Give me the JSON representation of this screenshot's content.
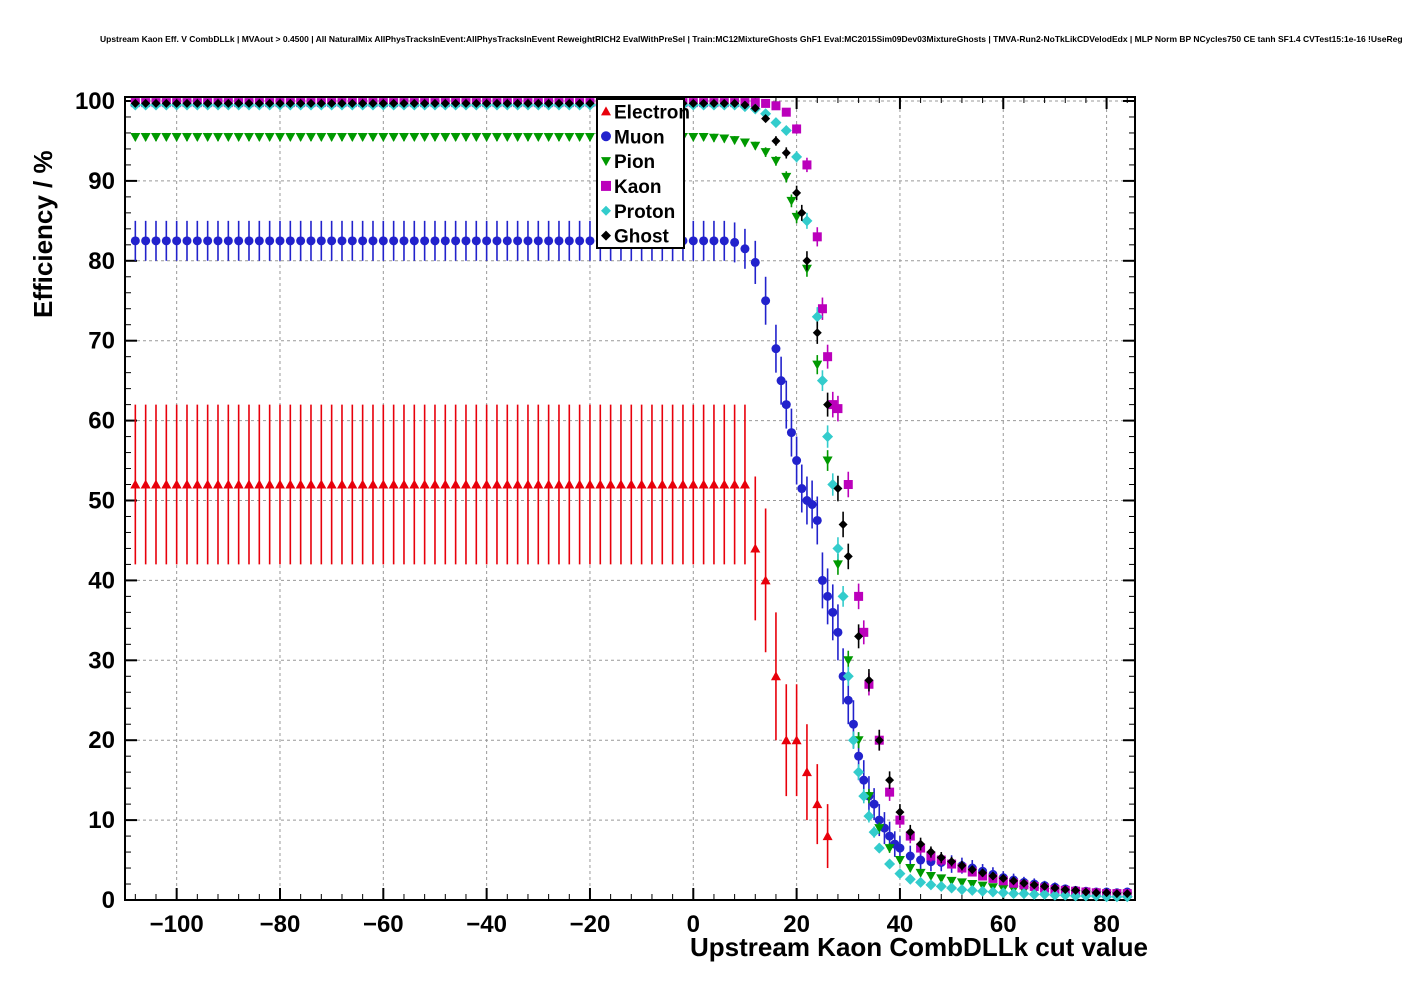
{
  "chart_data": {
    "type": "scatter",
    "title": "Upstream Kaon Eff. V CombDLLk | MVAout > 0.4500 | All NaturalMix AllPhysTracksInEvent:AllPhysTracksInEvent ReweightRICH2 EvalWithPreSel | Train:MC12MixtureGhosts GhF1 Eval:MC2015Sim09Dev03MixtureGhosts | TMVA-Run2-NoTkLikCDVelodEdx | MLP Norm BP NCycles750 CE tanh SF1.4 CVTest15:1e-16 !UseReg",
    "xlabel": "Upstream Kaon CombDLLk cut value",
    "ylabel": "Efficiency / %",
    "xlim": [
      -110,
      85.5
    ],
    "ylim": [
      0,
      100.5
    ],
    "x_ticks": [
      -100,
      -80,
      -60,
      -40,
      -20,
      0,
      20,
      40,
      60,
      80
    ],
    "y_ticks": [
      0,
      10,
      20,
      30,
      40,
      50,
      60,
      70,
      80,
      90,
      100
    ],
    "x_minor_step": 4,
    "y_minor_step": 2,
    "grid": true,
    "grid_color": "#999999",
    "frame_color": "#000000",
    "legend": {
      "background": "#ffffff",
      "border_color": "#000000"
    },
    "series": [
      {
        "name": "Electron",
        "color": "#e8000b",
        "marker": "triangle-up",
        "marker_size": 5,
        "plateau": {
          "x_start": -108,
          "x_end": 10,
          "step": 2,
          "y": 52,
          "yerr": 10
        },
        "drop": [
          [
            12,
            44,
            9
          ],
          [
            14,
            40,
            9
          ],
          [
            16,
            28,
            8
          ],
          [
            18,
            20,
            7
          ],
          [
            20,
            20,
            7
          ],
          [
            22,
            16,
            6
          ],
          [
            24,
            12,
            5
          ],
          [
            26,
            8,
            4
          ]
        ]
      },
      {
        "name": "Muon",
        "color": "#2222cc",
        "marker": "circle",
        "marker_size": 4.5,
        "plateau": {
          "x_start": -108,
          "x_end": 6,
          "step": 2,
          "y": 82.5,
          "yerr": 2.5
        },
        "drop": [
          [
            8,
            82.3,
            2.5
          ],
          [
            10,
            81.5,
            2.5
          ],
          [
            12,
            79.8,
            2.7
          ],
          [
            14,
            75,
            3
          ],
          [
            16,
            69,
            3
          ],
          [
            17,
            65,
            3
          ],
          [
            18,
            62,
            3
          ],
          [
            19,
            58.5,
            3
          ],
          [
            20,
            55,
            3
          ],
          [
            21,
            51.5,
            3
          ],
          [
            22,
            50,
            3
          ],
          [
            23,
            49.5,
            3
          ],
          [
            24,
            47.5,
            3
          ],
          [
            25,
            40,
            3.5
          ],
          [
            26,
            38,
            3.5
          ],
          [
            27,
            36,
            3.5
          ],
          [
            28,
            33.5,
            3.5
          ],
          [
            29,
            28,
            3.5
          ],
          [
            30,
            25,
            3
          ],
          [
            31,
            22,
            3
          ],
          [
            32,
            18,
            3
          ],
          [
            33,
            15,
            2.5
          ],
          [
            34,
            13,
            2.5
          ],
          [
            35,
            12,
            2
          ],
          [
            36,
            10,
            2
          ],
          [
            37,
            9,
            2
          ],
          [
            38,
            8,
            1.8
          ],
          [
            39,
            7,
            1.6
          ],
          [
            40,
            6.5,
            1.5
          ],
          [
            42,
            5.5,
            1.3
          ],
          [
            44,
            5,
            1.2
          ],
          [
            46,
            4.8,
            1.2
          ],
          [
            48,
            4.7,
            1.1
          ],
          [
            50,
            4.5,
            1.1
          ],
          [
            52,
            4.3,
            1
          ],
          [
            54,
            4,
            1
          ],
          [
            56,
            3.6,
            0.9
          ],
          [
            58,
            3.2,
            0.9
          ],
          [
            60,
            2.8,
            0.8
          ],
          [
            62,
            2.5,
            0.8
          ],
          [
            64,
            2.2,
            0.7
          ],
          [
            66,
            2,
            0.7
          ],
          [
            68,
            1.8,
            0.6
          ],
          [
            70,
            1.6,
            0.6
          ],
          [
            72,
            1.4,
            0.5
          ],
          [
            74,
            1.2,
            0.5
          ],
          [
            76,
            1.1,
            0.4
          ],
          [
            78,
            1,
            0.4
          ],
          [
            80,
            1,
            0.4
          ],
          [
            82,
            0.9,
            0.4
          ],
          [
            84,
            1,
            0.4
          ]
        ]
      },
      {
        "name": "Pion",
        "color": "#009900",
        "marker": "triangle-down",
        "marker_size": 5,
        "plateau": {
          "x_start": -108,
          "x_end": 2,
          "step": 2,
          "y": 95.5,
          "yerr": 0.5
        },
        "drop": [
          [
            4,
            95.4,
            0.5
          ],
          [
            6,
            95.3,
            0.5
          ],
          [
            8,
            95.1,
            0.5
          ],
          [
            10,
            94.8,
            0.5
          ],
          [
            12,
            94.4,
            0.5
          ],
          [
            14,
            93.6,
            0.6
          ],
          [
            16,
            92.5,
            0.6
          ],
          [
            18,
            90.5,
            0.7
          ],
          [
            19,
            87.5,
            0.8
          ],
          [
            20,
            85.5,
            0.8
          ],
          [
            22,
            79,
            1
          ],
          [
            24,
            67,
            1.2
          ],
          [
            26,
            55,
            1.3
          ],
          [
            28,
            42,
            1.3
          ],
          [
            30,
            30,
            1.2
          ],
          [
            32,
            20,
            1
          ],
          [
            34,
            13,
            0.9
          ],
          [
            36,
            9,
            0.7
          ],
          [
            38,
            6.5,
            0.6
          ],
          [
            40,
            5,
            0.5
          ],
          [
            42,
            4,
            0.5
          ],
          [
            44,
            3.4,
            0.4
          ],
          [
            46,
            3,
            0.4
          ],
          [
            48,
            2.7,
            0.4
          ],
          [
            50,
            2.4,
            0.3
          ],
          [
            52,
            2.2,
            0.3
          ],
          [
            54,
            2,
            0.3
          ],
          [
            56,
            1.8,
            0.3
          ],
          [
            58,
            1.6,
            0.3
          ],
          [
            60,
            1.4,
            0.2
          ],
          [
            62,
            1.3,
            0.2
          ],
          [
            64,
            1.2,
            0.2
          ],
          [
            66,
            1.1,
            0.2
          ],
          [
            68,
            1,
            0.2
          ],
          [
            70,
            0.9,
            0.2
          ],
          [
            72,
            0.8,
            0.2
          ],
          [
            74,
            0.7,
            0.1
          ],
          [
            76,
            0.7,
            0.1
          ],
          [
            78,
            0.6,
            0.1
          ],
          [
            80,
            0.6,
            0.1
          ],
          [
            82,
            0.5,
            0.1
          ],
          [
            84,
            0.5,
            0.1
          ]
        ]
      },
      {
        "name": "Kaon",
        "color": "#bb00bb",
        "marker": "square",
        "marker_size": 4.5,
        "plateau": {
          "x_start": -108,
          "x_end": 12,
          "step": 2,
          "y": 99.8,
          "yerr": 0.2
        },
        "drop": [
          [
            14,
            99.7,
            0.2
          ],
          [
            16,
            99.4,
            0.3
          ],
          [
            18,
            98.6,
            0.4
          ],
          [
            20,
            96.5,
            0.6
          ],
          [
            22,
            92,
            0.9
          ],
          [
            24,
            83,
            1.2
          ],
          [
            25,
            74,
            1.4
          ],
          [
            26,
            68,
            1.5
          ],
          [
            27,
            62,
            1.6
          ],
          [
            28,
            61.5,
            1.6
          ],
          [
            30,
            52,
            1.6
          ],
          [
            32,
            38,
            1.6
          ],
          [
            33,
            33.5,
            1.5
          ],
          [
            34,
            27,
            1.4
          ],
          [
            36,
            20,
            1.3
          ],
          [
            38,
            13.5,
            1.1
          ],
          [
            40,
            10,
            1
          ],
          [
            42,
            8,
            0.9
          ],
          [
            44,
            6.5,
            0.8
          ],
          [
            46,
            5.5,
            0.7
          ],
          [
            48,
            5,
            0.7
          ],
          [
            50,
            4.5,
            0.6
          ],
          [
            52,
            4,
            0.6
          ],
          [
            54,
            3.5,
            0.5
          ],
          [
            56,
            3,
            0.5
          ],
          [
            58,
            2.7,
            0.5
          ],
          [
            60,
            2.4,
            0.4
          ],
          [
            62,
            2.1,
            0.4
          ],
          [
            64,
            1.9,
            0.4
          ],
          [
            66,
            1.7,
            0.3
          ],
          [
            68,
            1.5,
            0.3
          ],
          [
            70,
            1.3,
            0.3
          ],
          [
            72,
            1.2,
            0.3
          ],
          [
            74,
            1.1,
            0.2
          ],
          [
            76,
            1,
            0.2
          ],
          [
            78,
            0.9,
            0.2
          ],
          [
            80,
            0.8,
            0.2
          ],
          [
            82,
            0.8,
            0.2
          ],
          [
            84,
            0.8,
            0.2
          ]
        ]
      },
      {
        "name": "Proton",
        "color": "#33cccc",
        "marker": "diamond",
        "marker_size": 5.5,
        "plateau": {
          "x_start": -108,
          "x_end": 8,
          "step": 2,
          "y": 99.5,
          "yerr": 0.3
        },
        "drop": [
          [
            10,
            99.3,
            0.3
          ],
          [
            12,
            99,
            0.3
          ],
          [
            14,
            98.4,
            0.4
          ],
          [
            16,
            97.3,
            0.5
          ],
          [
            18,
            96.3,
            0.5
          ],
          [
            20,
            93,
            0.7
          ],
          [
            22,
            85,
            1
          ],
          [
            24,
            73,
            1.2
          ],
          [
            25,
            65,
            1.3
          ],
          [
            26,
            58,
            1.4
          ],
          [
            27,
            52,
            1.4
          ],
          [
            28,
            44,
            1.4
          ],
          [
            29,
            38,
            1.3
          ],
          [
            30,
            28,
            1.2
          ],
          [
            31,
            20,
            1.1
          ],
          [
            32,
            16,
            1
          ],
          [
            33,
            13,
            0.9
          ],
          [
            34,
            10.5,
            0.8
          ],
          [
            35,
            8.5,
            0.7
          ],
          [
            36,
            6.5,
            0.6
          ],
          [
            38,
            4.5,
            0.5
          ],
          [
            40,
            3.3,
            0.4
          ],
          [
            42,
            2.6,
            0.4
          ],
          [
            44,
            2.2,
            0.3
          ],
          [
            46,
            1.9,
            0.3
          ],
          [
            48,
            1.7,
            0.3
          ],
          [
            50,
            1.5,
            0.3
          ],
          [
            52,
            1.3,
            0.2
          ],
          [
            54,
            1.2,
            0.2
          ],
          [
            56,
            1.1,
            0.2
          ],
          [
            58,
            1,
            0.2
          ],
          [
            60,
            0.9,
            0.2
          ],
          [
            62,
            0.8,
            0.2
          ],
          [
            64,
            0.8,
            0.1
          ],
          [
            66,
            0.7,
            0.1
          ],
          [
            68,
            0.7,
            0.1
          ],
          [
            70,
            0.6,
            0.1
          ],
          [
            72,
            0.6,
            0.1
          ],
          [
            74,
            0.5,
            0.1
          ],
          [
            76,
            0.5,
            0.1
          ],
          [
            78,
            0.5,
            0.1
          ],
          [
            80,
            0.4,
            0.1
          ],
          [
            82,
            0.4,
            0.1
          ],
          [
            84,
            0.4,
            0.1
          ]
        ]
      },
      {
        "name": "Ghost",
        "color": "#000000",
        "marker": "diamond",
        "marker_size": 4.5,
        "plateau": {
          "x_start": -108,
          "x_end": 8,
          "step": 2,
          "y": 99.7,
          "yerr": 0.2
        },
        "drop": [
          [
            10,
            99.5,
            0.2
          ],
          [
            12,
            99.1,
            0.3
          ],
          [
            14,
            97.8,
            0.4
          ],
          [
            16,
            95,
            0.6
          ],
          [
            18,
            93.5,
            0.7
          ],
          [
            20,
            88.5,
            0.9
          ],
          [
            21,
            86,
            1
          ],
          [
            22,
            80,
            1.2
          ],
          [
            24,
            71,
            1.4
          ],
          [
            26,
            62,
            1.5
          ],
          [
            28,
            51.5,
            1.6
          ],
          [
            29,
            47,
            1.6
          ],
          [
            30,
            43,
            1.6
          ],
          [
            32,
            33,
            1.5
          ],
          [
            34,
            27.5,
            1.4
          ],
          [
            36,
            20,
            1.3
          ],
          [
            38,
            15,
            1.1
          ],
          [
            40,
            11,
            1
          ],
          [
            42,
            8.5,
            0.9
          ],
          [
            44,
            7,
            0.8
          ],
          [
            46,
            6,
            0.7
          ],
          [
            48,
            5.3,
            0.7
          ],
          [
            50,
            4.8,
            0.6
          ],
          [
            52,
            4.3,
            0.6
          ],
          [
            54,
            3.8,
            0.5
          ],
          [
            56,
            3.4,
            0.5
          ],
          [
            58,
            3,
            0.5
          ],
          [
            60,
            2.7,
            0.4
          ],
          [
            62,
            2.4,
            0.4
          ],
          [
            64,
            2.1,
            0.4
          ],
          [
            66,
            1.9,
            0.3
          ],
          [
            68,
            1.7,
            0.3
          ],
          [
            70,
            1.5,
            0.3
          ],
          [
            72,
            1.3,
            0.3
          ],
          [
            74,
            1.2,
            0.2
          ],
          [
            76,
            1,
            0.2
          ],
          [
            78,
            0.9,
            0.2
          ],
          [
            80,
            0.9,
            0.2
          ],
          [
            82,
            0.8,
            0.2
          ],
          [
            84,
            0.8,
            0.2
          ]
        ]
      }
    ]
  }
}
